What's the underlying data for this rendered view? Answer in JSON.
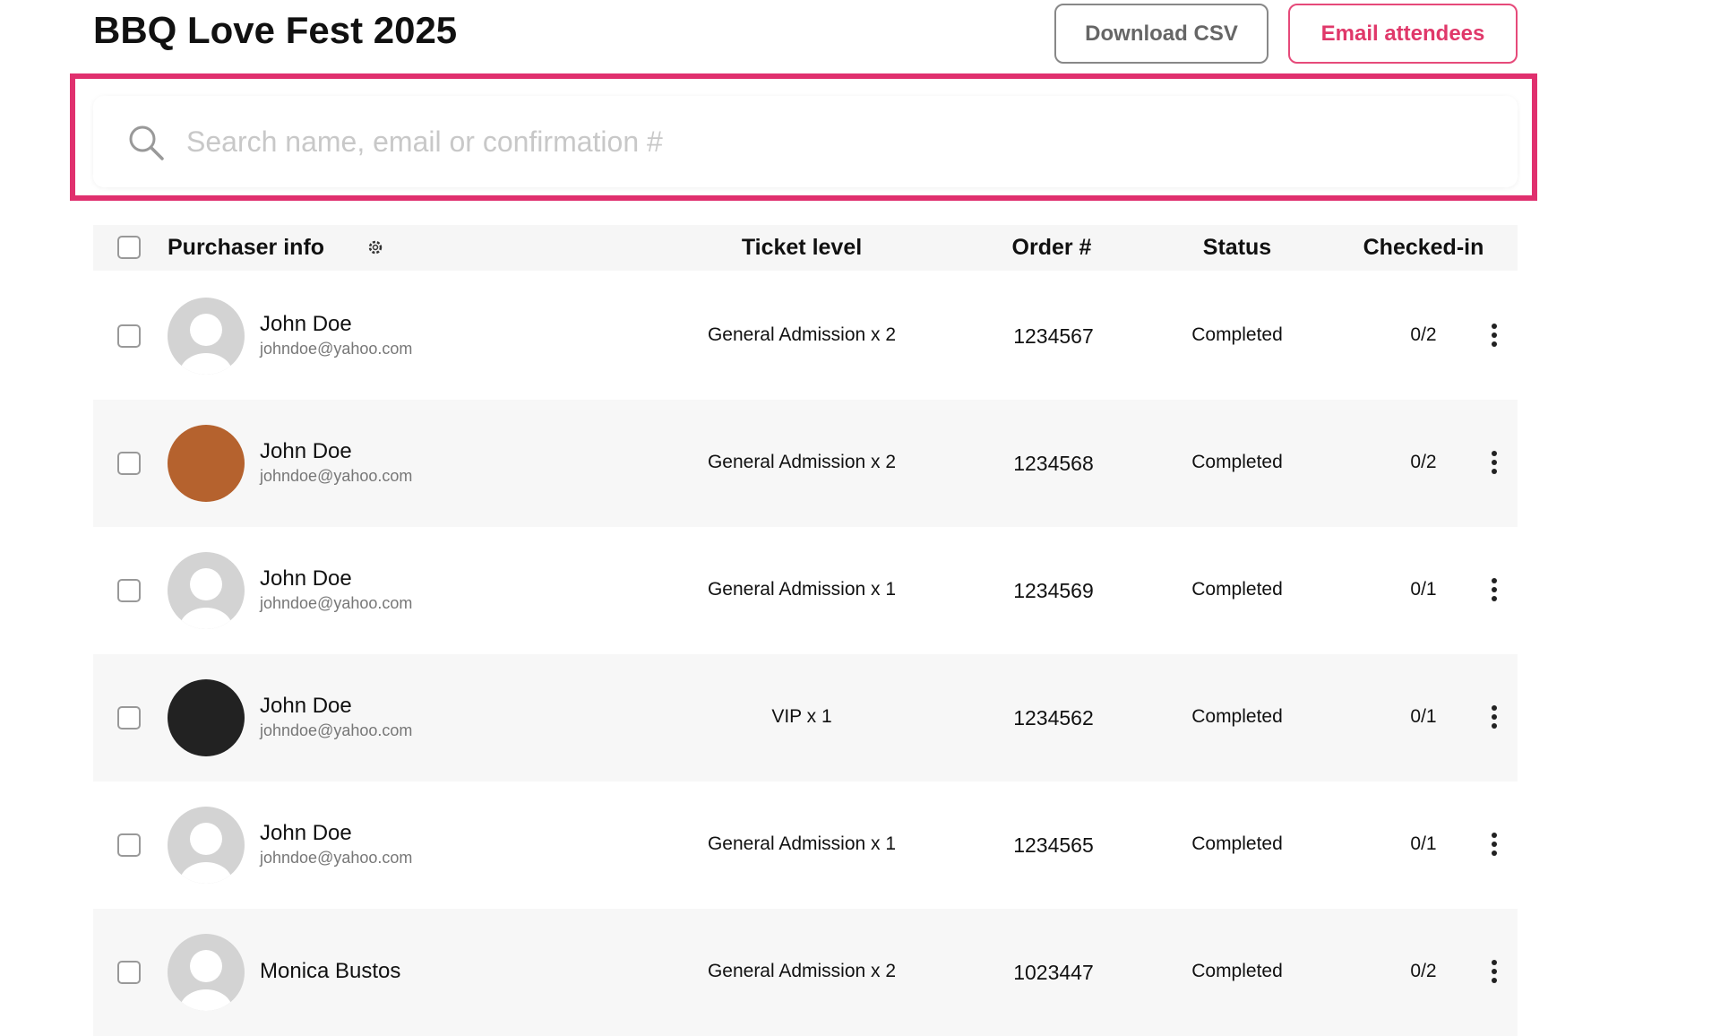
{
  "header": {
    "title": "BBQ Love Fest 2025",
    "buttons": [
      "Download CSV",
      "Email attendees"
    ]
  },
  "search": {
    "placeholder": "Search name, email or confirmation #"
  },
  "table": {
    "columns": [
      "Purchaser info",
      "Ticket level",
      "Order #",
      "Status",
      "Checked-in"
    ],
    "rows": [
      {
        "name": "John Doe",
        "email": "johndoe@yahoo.com",
        "ticket": "General Admission x 2",
        "order": 1234567,
        "status": "Completed",
        "checked_in": "0/2"
      },
      {
        "name": "John Doe",
        "email": "johndoe@yahoo.com",
        "ticket": "General Admission x 2",
        "order": 1234568,
        "status": "Completed",
        "checked_in": "0/2"
      },
      {
        "name": "John Doe",
        "email": "johndoe@yahoo.com",
        "ticket": "General Admission x 1",
        "order": 1234569,
        "status": "Completed",
        "checked_in": "0/1"
      },
      {
        "name": "John Doe",
        "email": "johndoe@yahoo.com",
        "ticket": "VIP x 1",
        "order": 1234562,
        "status": "Completed",
        "checked_in": "0/1"
      },
      {
        "name": "John Doe",
        "email": "johndoe@yahoo.com",
        "ticket": "General Admission x 1",
        "order": 1234565,
        "status": "Completed",
        "checked_in": "0/1"
      },
      {
        "name": "Monica Bustos",
        "ticket": "General Admission x 2",
        "order": 1023447,
        "status": "Completed",
        "checked_in": "0/2"
      }
    ]
  }
}
